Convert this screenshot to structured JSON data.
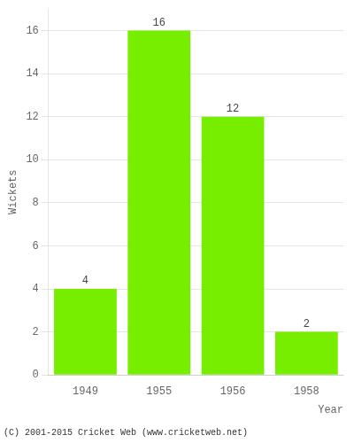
{
  "chart_data": {
    "type": "bar",
    "categories": [
      "1949",
      "1955",
      "1956",
      "1958"
    ],
    "values": [
      4,
      16,
      12,
      2
    ],
    "color": "#77ee00",
    "xlabel": "Year",
    "ylabel": "Wickets",
    "ylim": [
      0,
      17
    ],
    "yticks": [
      0,
      2,
      4,
      6,
      8,
      10,
      12,
      14,
      16
    ],
    "grid": true,
    "data_labels": true,
    "annotations": [
      "(C) 2001-2015 Cricket Web (www.cricketweb.net)"
    ]
  }
}
